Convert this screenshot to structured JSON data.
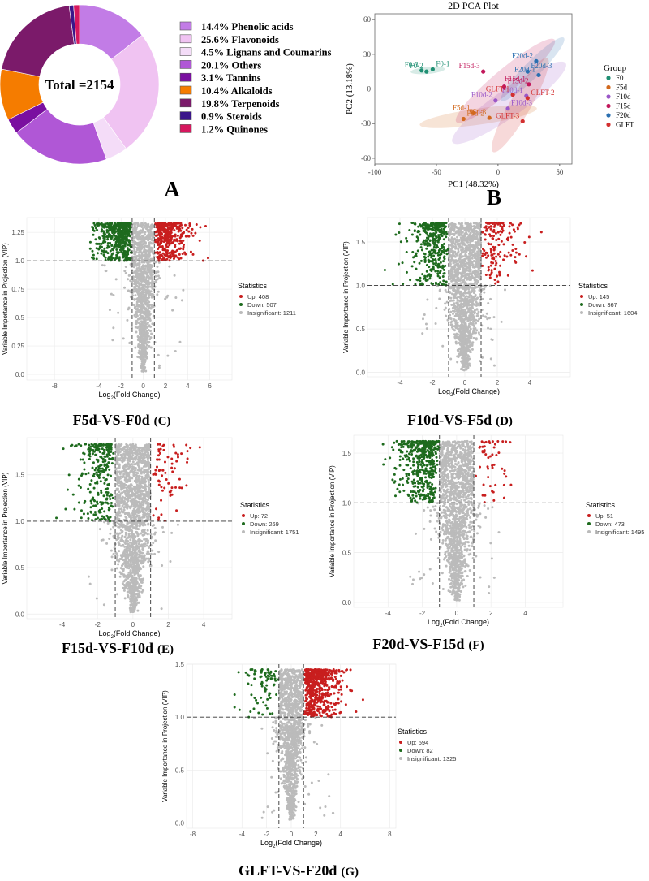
{
  "panels": {
    "A": {
      "letter": "A"
    },
    "B": {
      "letter": "B"
    },
    "C": {
      "caption": "F5d-VS-F0d",
      "letter": "(C)"
    },
    "D": {
      "caption": "F10d-VS-F5d",
      "letter": "(D)"
    },
    "E": {
      "caption": "F15d-VS-F10d",
      "letter": "(E)"
    },
    "F": {
      "caption": "F20d-VS-F15d",
      "letter": "(F)"
    },
    "G": {
      "caption": "GLFT-VS-F20d",
      "letter": "(G)"
    }
  },
  "chart_data": [
    {
      "id": "A",
      "type": "pie",
      "donut": true,
      "center_label": "Total =2154",
      "slices": [
        {
          "label": "14.4% Phenolic acids",
          "value": 14.4,
          "color": "#c27ce6"
        },
        {
          "label": "25.6% Flavonoids",
          "value": 25.6,
          "color": "#f0c3f2"
        },
        {
          "label": "4.5% Lignans and Coumarins",
          "value": 4.5,
          "color": "#f4dcf8"
        },
        {
          "label": "20.1% Others",
          "value": 20.1,
          "color": "#b057d6"
        },
        {
          "label": "3.1% Tannins",
          "value": 3.1,
          "color": "#7a0fa0"
        },
        {
          "label": "10.4% Alkaloids",
          "value": 10.4,
          "color": "#f57c00"
        },
        {
          "label": "19.8% Terpenoids",
          "value": 19.8,
          "color": "#7b1a6a"
        },
        {
          "label": "0.9% Steroids",
          "value": 0.9,
          "color": "#3b168a"
        },
        {
          "label": "1.2% Quinones",
          "value": 1.2,
          "color": "#d6175e"
        }
      ]
    },
    {
      "id": "B",
      "type": "scatter",
      "title": "2D PCA Plot",
      "xlabel": "PC1 (48.32%)",
      "ylabel": "PC2 (13.18%)",
      "xlim": [
        -100,
        60
      ],
      "ylim": [
        -65,
        65
      ],
      "xticks": [
        -100,
        -50,
        0,
        50
      ],
      "yticks": [
        -60,
        -30,
        0,
        30,
        60
      ],
      "legend_title": "Group",
      "groups": [
        {
          "name": "F0",
          "color": "#1f8f73",
          "points": [
            {
              "label": "F0-3",
              "x": -62,
              "y": 16
            },
            {
              "label": "F0-1",
              "x": -53,
              "y": 17
            },
            {
              "label": "F0-2",
              "x": -58,
              "y": 15
            }
          ],
          "ellipse": {
            "cx": -57,
            "cy": 16,
            "rx": 14,
            "ry": 3,
            "rot": 5
          }
        },
        {
          "name": "F5d",
          "color": "#d2691e",
          "points": [
            {
              "label": "F5d-1",
              "x": -20,
              "y": -21
            },
            {
              "label": "F5d-2",
              "x": -28,
              "y": -26
            },
            {
              "label": "F5d-3",
              "x": -7,
              "y": -25
            }
          ],
          "ellipse": {
            "cx": -16,
            "cy": -24,
            "rx": 48,
            "ry": 7,
            "rot": 8
          }
        },
        {
          "name": "F10d",
          "color": "#9a57c8",
          "points": [
            {
              "label": "F10d-2",
              "x": -2,
              "y": -10
            },
            {
              "label": "F10d-3",
              "x": 8,
              "y": -17
            },
            {
              "label": "F10d-1",
              "x": 23,
              "y": -6
            }
          ],
          "ellipse": {
            "cx": 9,
            "cy": -12,
            "rx": 56,
            "ry": 12,
            "rot": 35
          }
        },
        {
          "name": "F15d",
          "color": "#c2185b",
          "points": [
            {
              "label": "F15d-3",
              "x": -12,
              "y": 15
            },
            {
              "label": "F15d-2",
              "x": 5,
              "y": 2
            },
            {
              "label": "F15d-1",
              "x": 25,
              "y": 4
            }
          ],
          "ellipse": {
            "cx": 6,
            "cy": 7,
            "rx": 52,
            "ry": 10,
            "rot": 40
          }
        },
        {
          "name": "F20d",
          "color": "#2a6fb0",
          "points": [
            {
              "label": "F20d-2",
              "x": 31,
              "y": 24
            },
            {
              "label": "F20d-3",
              "x": 24,
              "y": 15
            },
            {
              "label": "F20d-1",
              "x": 33,
              "y": 12
            }
          ],
          "ellipse": {
            "cx": 28,
            "cy": 17,
            "rx": 36,
            "ry": 7,
            "rot": 45
          }
        },
        {
          "name": "GLFT",
          "color": "#d32f2f",
          "points": [
            {
              "label": "GLFT-1",
              "x": 12,
              "y": -5
            },
            {
              "label": "GLFT-2",
              "x": 24,
              "y": -8
            },
            {
              "label": "GLFT-3",
              "x": 20,
              "y": -28
            }
          ],
          "ellipse": {
            "cx": 18,
            "cy": -14,
            "rx": 44,
            "ry": 9,
            "rot": 60
          }
        }
      ]
    },
    {
      "id": "C",
      "type": "scatter",
      "subtype": "volcano",
      "xlabel": "Log2(Fold Change)",
      "ylabel": "Variable Importance in Projection (VIP)",
      "xlim": [
        -10.5,
        8
      ],
      "ylim": [
        -0.05,
        1.38
      ],
      "xticks": [
        -8,
        -4,
        -2,
        0,
        2,
        4,
        6
      ],
      "yticks": [
        0.0,
        0.25,
        0.5,
        0.75,
        1.0,
        1.25
      ],
      "ytick_labels": [
        "0.0",
        "0.25",
        "0.5",
        "0.75",
        "1.0",
        "1.25"
      ],
      "vlines": [
        -1,
        1
      ],
      "hline": 1.0,
      "vip_max": 1.33,
      "spread": 2.3,
      "xmin_sig": -9.5,
      "xmax_sig": 6.8,
      "legend_title": "Statistics",
      "series": [
        {
          "name": "Up: 408",
          "count": 408,
          "color": "#c81e1e"
        },
        {
          "name": "Down: 507",
          "count": 507,
          "color": "#1e6b1e"
        },
        {
          "name": "Insignificant: 1211",
          "count": 1211,
          "color": "#bbbbbb"
        }
      ]
    },
    {
      "id": "D",
      "type": "scatter",
      "subtype": "volcano",
      "xlabel": "Log2(Fold Change)",
      "ylabel": "Variable Importance in Projection (VIP)",
      "xlim": [
        -6,
        6.5
      ],
      "ylim": [
        -0.05,
        1.78
      ],
      "xticks": [
        -4,
        -2,
        0,
        2,
        4
      ],
      "yticks": [
        0.0,
        0.5,
        1.0,
        1.5
      ],
      "ytick_labels": [
        "0.0",
        "0.5",
        "1.0",
        "1.5"
      ],
      "vlines": [
        -1,
        1
      ],
      "hline": 1.0,
      "vip_max": 1.72,
      "spread": 1.7,
      "xmin_sig": -5.5,
      "xmax_sig": 5.6,
      "legend_title": "Statistics",
      "series": [
        {
          "name": "Up: 145",
          "count": 145,
          "color": "#c81e1e"
        },
        {
          "name": "Down: 367",
          "count": 367,
          "color": "#1e6b1e"
        },
        {
          "name": "Insignificant: 1604",
          "count": 1604,
          "color": "#bbbbbb"
        }
      ]
    },
    {
      "id": "E",
      "type": "scatter",
      "subtype": "volcano",
      "xlabel": "Log2(Fold Change)",
      "ylabel": "Variable Importance in Projection (VIP)",
      "xlim": [
        -6,
        5.6
      ],
      "ylim": [
        -0.05,
        1.9
      ],
      "xticks": [
        -4,
        -2,
        0,
        2,
        4
      ],
      "yticks": [
        0.0,
        0.5,
        1.0,
        1.5
      ],
      "ytick_labels": [
        "0.0",
        "0.5",
        "1.0",
        "1.5"
      ],
      "vlines": [
        -1,
        1
      ],
      "hline": 1.0,
      "vip_max": 1.83,
      "spread": 1.6,
      "xmin_sig": -5.6,
      "xmax_sig": 5.2,
      "legend_title": "Statistics",
      "series": [
        {
          "name": "Up: 72",
          "count": 72,
          "color": "#c81e1e"
        },
        {
          "name": "Down: 269",
          "count": 269,
          "color": "#1e6b1e"
        },
        {
          "name": "Insignificant: 1751",
          "count": 1751,
          "color": "#bbbbbb"
        }
      ]
    },
    {
      "id": "F",
      "type": "scatter",
      "subtype": "volcano",
      "xlabel": "Log2(Fold Change)",
      "ylabel": "Variable Importance in Projection (VIP)",
      "xlim": [
        -6,
        6.2
      ],
      "ylim": [
        -0.05,
        1.68
      ],
      "xticks": [
        -4,
        -2,
        0,
        2,
        4
      ],
      "yticks": [
        0.0,
        0.5,
        1.0,
        1.5
      ],
      "ytick_labels": [
        "0.0",
        "0.5",
        "1.0",
        "1.5"
      ],
      "vlines": [
        -1,
        1
      ],
      "hline": 1.0,
      "vip_max": 1.62,
      "spread": 1.7,
      "xmin_sig": -5.0,
      "xmax_sig": 3.9,
      "legend_title": "Statistics",
      "series": [
        {
          "name": "Up: 51",
          "count": 51,
          "color": "#c81e1e"
        },
        {
          "name": "Down: 473",
          "count": 473,
          "color": "#1e6b1e"
        },
        {
          "name": "Insignificant: 1495",
          "count": 1495,
          "color": "#bbbbbb"
        }
      ]
    },
    {
      "id": "G",
      "type": "scatter",
      "subtype": "volcano",
      "xlabel": "Log2(Fold Change)",
      "ylabel": "Variable Importance in Projection (VIP)",
      "xlim": [
        -8.5,
        8.5
      ],
      "ylim": [
        -0.05,
        1.5
      ],
      "xticks": [
        -8,
        -4,
        -2,
        0,
        2,
        4,
        8
      ],
      "yticks": [
        0.0,
        0.5,
        1.0,
        1.5
      ],
      "ytick_labels": [
        "0.0",
        "0.5",
        "1.0",
        "1.5"
      ],
      "vlines": [
        -1,
        1
      ],
      "hline": 1.0,
      "vip_max": 1.45,
      "spread": 2.2,
      "xmin_sig": -4.6,
      "xmax_sig": 7.8,
      "legend_title": "Statistics",
      "series": [
        {
          "name": "Up: 594",
          "count": 594,
          "color": "#c81e1e"
        },
        {
          "name": "Down: 82",
          "count": 82,
          "color": "#1e6b1e"
        },
        {
          "name": "Insignificant: 1325",
          "count": 1325,
          "color": "#bbbbbb"
        }
      ]
    }
  ]
}
